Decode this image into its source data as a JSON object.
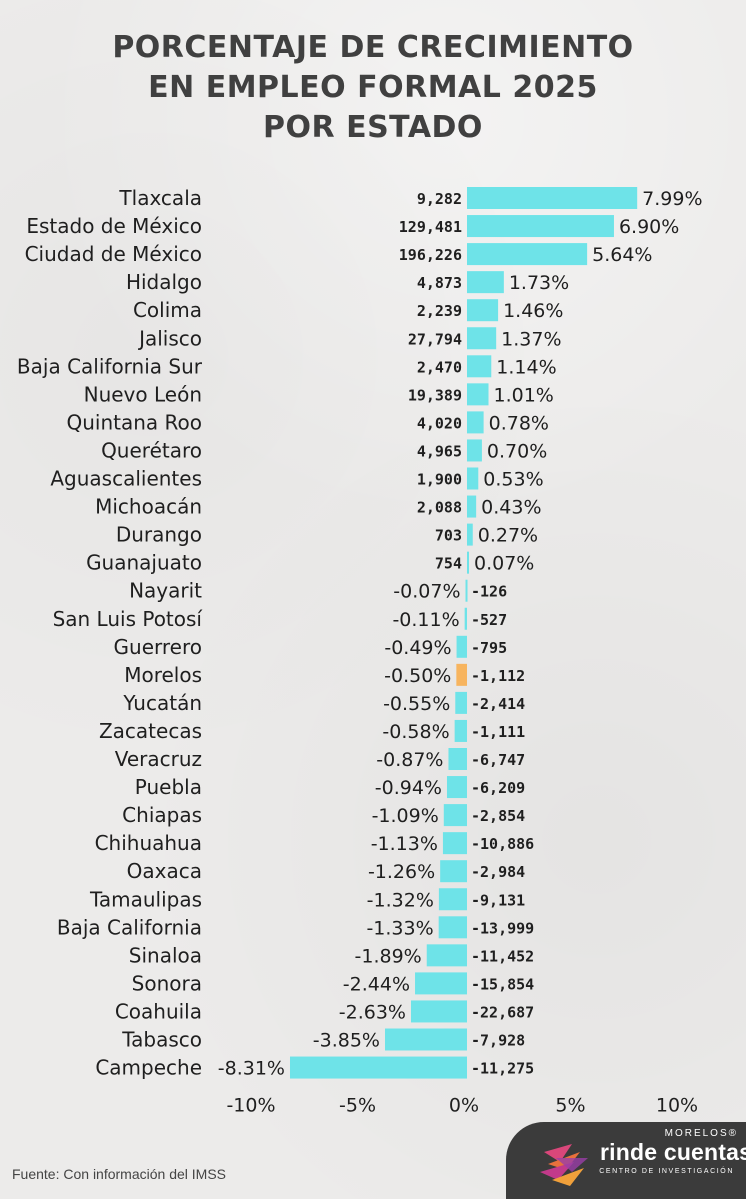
{
  "title_lines": [
    "PORCENTAJE DE CRECIMIENTO",
    "EN EMPLEO FORMAL 2025",
    "POR ESTADO"
  ],
  "source": "Fuente: Con información del IMSS",
  "logo": {
    "top": "MORELOS®",
    "main": "rinde cuentas",
    "sub": "CENTRO DE INVESTIGACIÓN"
  },
  "colors": {
    "bar": "#6ee3e8",
    "highlight": "#f7b45e",
    "text": "#1f1f1f",
    "title": "#404040",
    "logo_bg": "#3b3b3b"
  },
  "chart_data": {
    "type": "bar",
    "orientation": "horizontal",
    "title": "PORCENTAJE DE CRECIMIENTO EN EMPLEO FORMAL 2025 POR ESTADO",
    "categories": [
      "Tlaxcala",
      "Estado de México",
      "Ciudad de México",
      "Hidalgo",
      "Colima",
      "Jalisco",
      "Baja California Sur",
      "Nuevo León",
      "Quintana Roo",
      "Querétaro",
      "Aguascalientes",
      "Michoacán",
      "Durango",
      "Guanajuato",
      "Nayarit",
      "San Luis Potosí",
      "Guerrero",
      "Morelos",
      "Yucatán",
      "Zacatecas",
      "Veracruz",
      "Puebla",
      "Chiapas",
      "Chihuahua",
      "Oaxaca",
      "Tamaulipas",
      "Baja California",
      "Sinaloa",
      "Sonora",
      "Coahuila",
      "Tabasco",
      "Campeche"
    ],
    "series": [
      {
        "values": [
          7.99,
          6.9,
          5.64,
          1.73,
          1.46,
          1.37,
          1.14,
          1.01,
          0.78,
          0.7,
          0.53,
          0.43,
          0.27,
          0.07,
          -0.07,
          -0.11,
          -0.49,
          -0.5,
          -0.55,
          -0.58,
          -0.87,
          -0.94,
          -1.09,
          -1.13,
          -1.26,
          -1.32,
          -1.33,
          -1.89,
          -2.44,
          -2.63,
          -3.85,
          -8.31
        ]
      },
      {
        "values": [
          9282,
          129481,
          196226,
          4873,
          2239,
          27794,
          2470,
          19389,
          4020,
          4965,
          1900,
          2088,
          703,
          754,
          -126,
          -527,
          -795,
          -1112,
          -2414,
          -1111,
          -6747,
          -6209,
          -2854,
          -10886,
          -2984,
          -9131,
          -13999,
          -11452,
          -15854,
          -22687,
          -7928,
          -11275
        ]
      }
    ],
    "percent_labels": [
      "7.99%",
      "6.90%",
      "5.64%",
      "1.73%",
      "1.46%",
      "1.37%",
      "1.14%",
      "1.01%",
      "0.78%",
      "0.70%",
      "0.53%",
      "0.43%",
      "0.27%",
      "0.07%",
      "-0.07%",
      "-0.11%",
      "-0.49%",
      "-0.50%",
      "-0.55%",
      "-0.58%",
      "-0.87%",
      "-0.94%",
      "-1.09%",
      "-1.13%",
      "-1.26%",
      "-1.32%",
      "-1.33%",
      "-1.89%",
      "-2.44%",
      "-2.63%",
      "-3.85%",
      "-8.31%"
    ],
    "count_labels": [
      "9,282",
      "129,481",
      "196,226",
      "4,873",
      "2,239",
      "27,794",
      "2,470",
      "19,389",
      "4,020",
      "4,965",
      "1,900",
      "2,088",
      "703",
      "754",
      "-126",
      "-527",
      "-795",
      "-1,112",
      "-2,414",
      "-1,111",
      "-6,747",
      "-6,209",
      "-2,854",
      "-10,886",
      "-2,984",
      "-9,131",
      "-13,999",
      "-11,452",
      "-15,854",
      "-22,687",
      "-7,928",
      "-11,275"
    ],
    "highlight": "Morelos",
    "xlim": [
      -10,
      10
    ],
    "xticks": [
      -10,
      -5,
      0,
      5,
      10
    ],
    "xtick_labels": [
      "-10%",
      "-5%",
      "0%",
      "5%",
      "10%"
    ],
    "grid": false,
    "legend": "none"
  }
}
